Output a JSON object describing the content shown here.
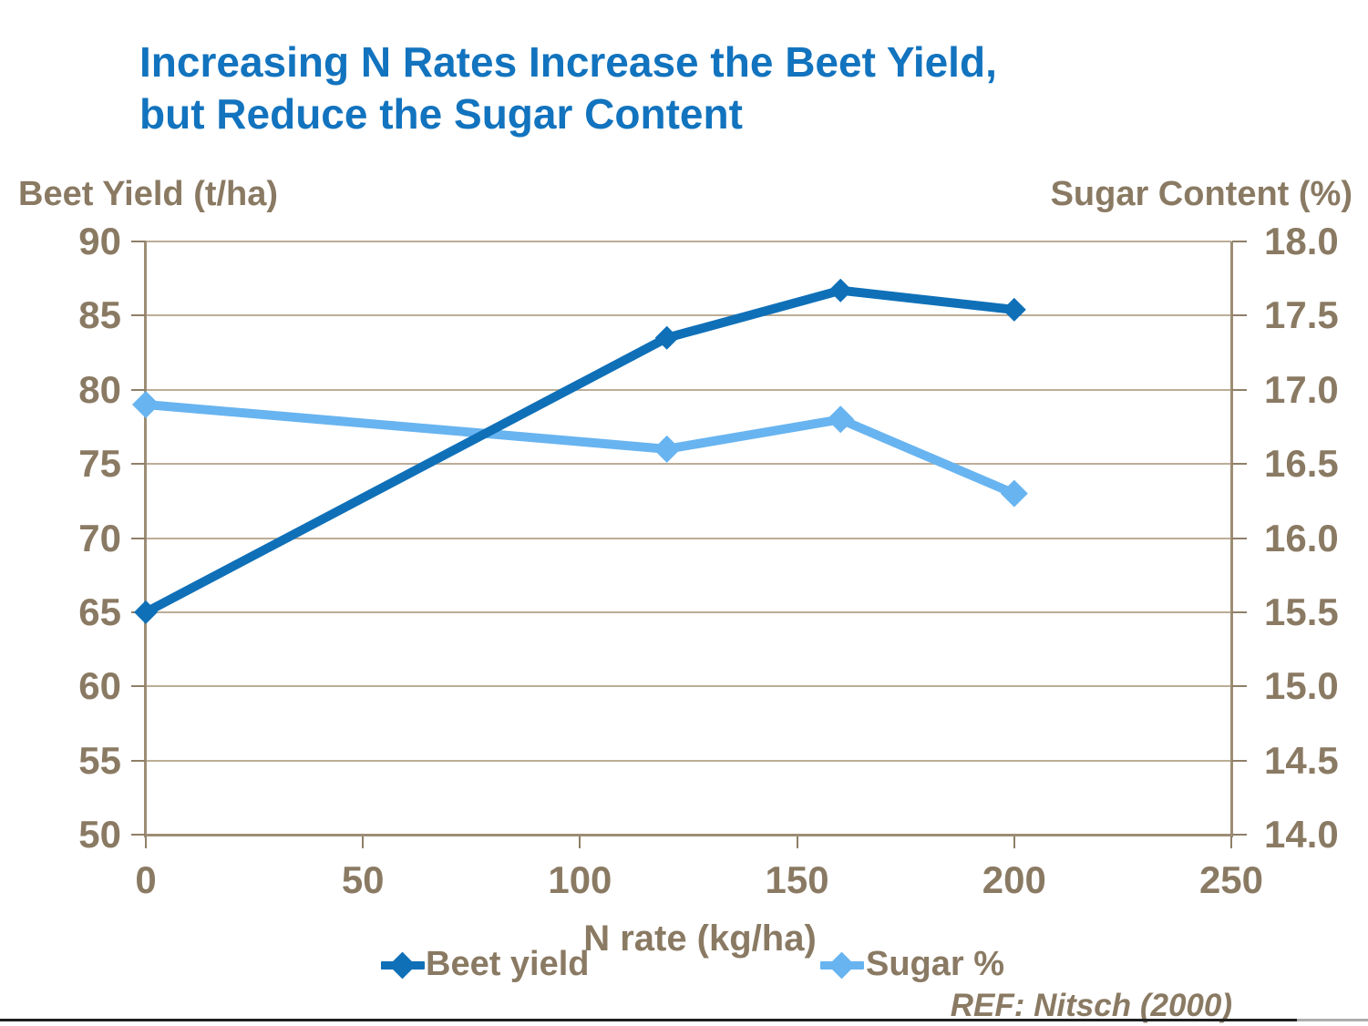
{
  "slide": {
    "title_line1": "Increasing N Rates Increase the Beet Yield,",
    "title_line2": "but Reduce the Sugar Content",
    "ref_note": "REF: Nitsch (2000)"
  },
  "chart_data": {
    "type": "line",
    "title": "Increasing N Rates Increase the Beet Yield, but Reduce the Sugar Content",
    "xlabel": "N rate (kg/ha)",
    "ylabel_left": "Beet Yield (t/ha)",
    "ylabel_right": "Sugar Content (%)",
    "x": [
      0,
      120,
      160,
      200
    ],
    "series": [
      {
        "name": "Beet yield",
        "axis": "left",
        "values": [
          65,
          83.5,
          86.7,
          85.4
        ],
        "color": "#0F70B8",
        "marker": "diamond",
        "marker_radius": 13,
        "line_width": 10
      },
      {
        "name": "Sugar %",
        "axis": "right",
        "values": [
          16.9,
          16.6,
          16.8,
          16.3
        ],
        "color": "#68B4F0",
        "marker": "diamond",
        "marker_radius": 15,
        "line_width": 10
      }
    ],
    "xlim": [
      0,
      250
    ],
    "x_tick_labels": [
      "0",
      "50",
      "100",
      "150",
      "200",
      "250"
    ],
    "x_tick_values": [
      0,
      50,
      100,
      150,
      200,
      250
    ],
    "ylim_left": [
      50,
      90
    ],
    "left_tick_labels": [
      "90",
      "85",
      "80",
      "75",
      "70",
      "65",
      "60",
      "55",
      "50"
    ],
    "left_tick_values": [
      90,
      85,
      80,
      75,
      70,
      65,
      60,
      55,
      50
    ],
    "ylim_right": [
      14.0,
      18.0
    ],
    "right_tick_labels": [
      "18.0",
      "17.5",
      "17.0",
      "16.5",
      "16.0",
      "15.5",
      "15.0",
      "14.5",
      "14.0"
    ],
    "right_tick_values": [
      18.0,
      17.5,
      17.0,
      16.5,
      16.0,
      15.5,
      15.0,
      14.5,
      14.0
    ],
    "grid": "horizontal",
    "legend_position": "bottom"
  },
  "colors": {
    "title_blue": "#1273BE",
    "beet_line": "#0F70B8",
    "sugar_line": "#68B4F0",
    "axis_text_brown": "#8A7A63",
    "gridline_tan": "#BCAD96",
    "axis_line_tan": "#9D8D75"
  }
}
